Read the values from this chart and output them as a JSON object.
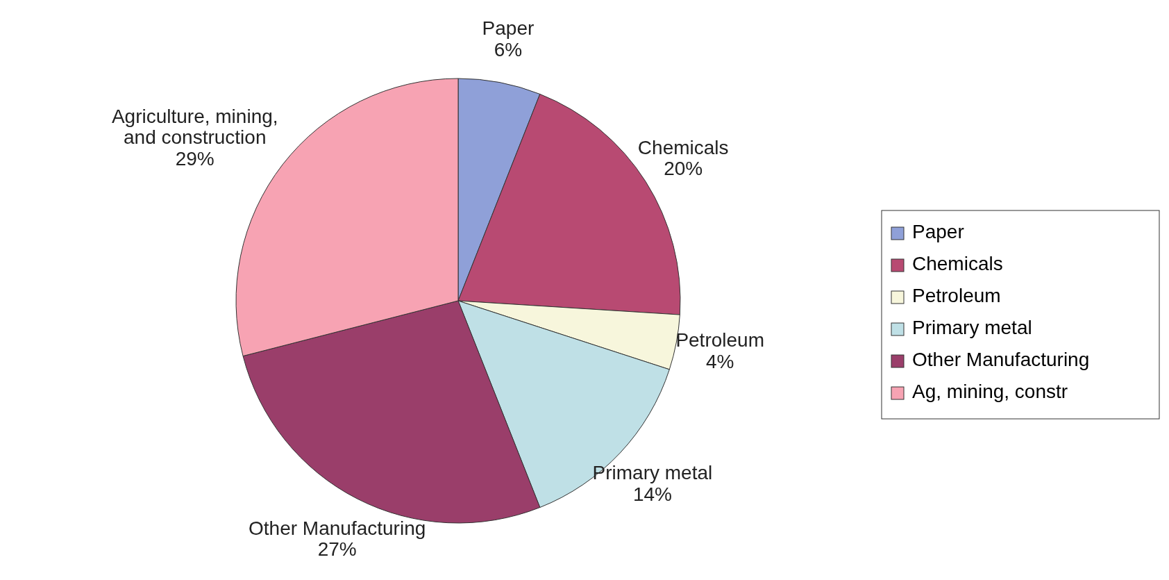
{
  "chart_data": {
    "type": "pie",
    "categories": [
      "Paper",
      "Chemicals",
      "Petroleum",
      "Primary metal",
      "Other Manufacturing",
      "Ag, mining, constr"
    ],
    "values": [
      6,
      20,
      4,
      14,
      27,
      29
    ],
    "colors": [
      "#8fa0d8",
      "#b84a72",
      "#f7f6dc",
      "#bfe0e6",
      "#9a3e6a",
      "#f7a3b3"
    ],
    "value_labels": [
      "Paper\n6%",
      "Chemicals\n20%",
      "Petroleum\n4%",
      "Primary metal\n14%",
      "Other Manufacturing\n27%",
      "Agriculture, mining,\nand construction\n29%"
    ],
    "legend": "right"
  }
}
